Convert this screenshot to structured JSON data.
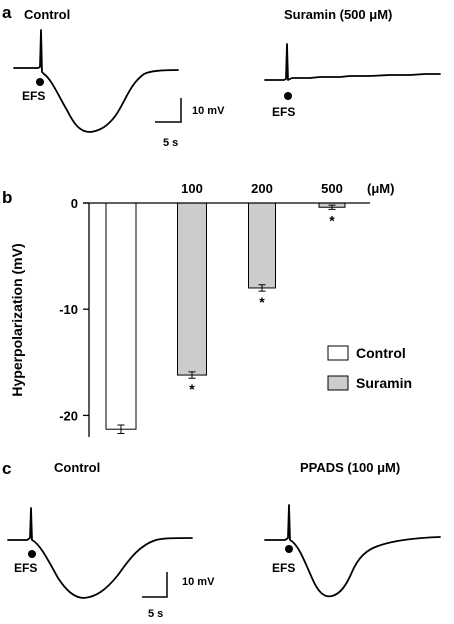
{
  "panel_a": {
    "letter": "a",
    "control_title": "Control",
    "treatment_title": "Suramin (500 μM)",
    "efs_label": "EFS",
    "scale_v": "10 mV",
    "scale_t": "5 s"
  },
  "panel_b": {
    "letter": "b",
    "conc_unit": "(μM)",
    "legend": {
      "control": "Control",
      "suramin": "Suramin"
    },
    "colors": {
      "control": "#ffffff",
      "suramin": "#cccccc"
    }
  },
  "panel_c": {
    "letter": "c",
    "control_title": "Control",
    "treatment_title": "PPADS (100 μM)",
    "efs_label": "EFS",
    "scale_v": "10 mV",
    "scale_t": "5 s"
  },
  "chart_data": {
    "type": "bar",
    "categories": [
      "",
      "100",
      "200",
      "500"
    ],
    "series": [
      {
        "name": "Control",
        "values": [
          -21.3,
          null,
          null,
          null
        ],
        "errors": [
          0.4,
          null,
          null,
          null
        ]
      },
      {
        "name": "Suramin",
        "values": [
          null,
          -16.2,
          -8.0,
          -0.4
        ],
        "errors": [
          null,
          0.3,
          0.3,
          0.2
        ]
      }
    ],
    "significance": [
      "",
      "*",
      "*",
      "*"
    ],
    "ylabel": "Hyperpolarization (mV)",
    "ylim": [
      -23,
      0
    ],
    "yticks": [
      0,
      -10,
      -20
    ],
    "ytick_labels": [
      "0",
      "-10",
      "-20"
    ],
    "legend_position": "right",
    "grid": false
  }
}
